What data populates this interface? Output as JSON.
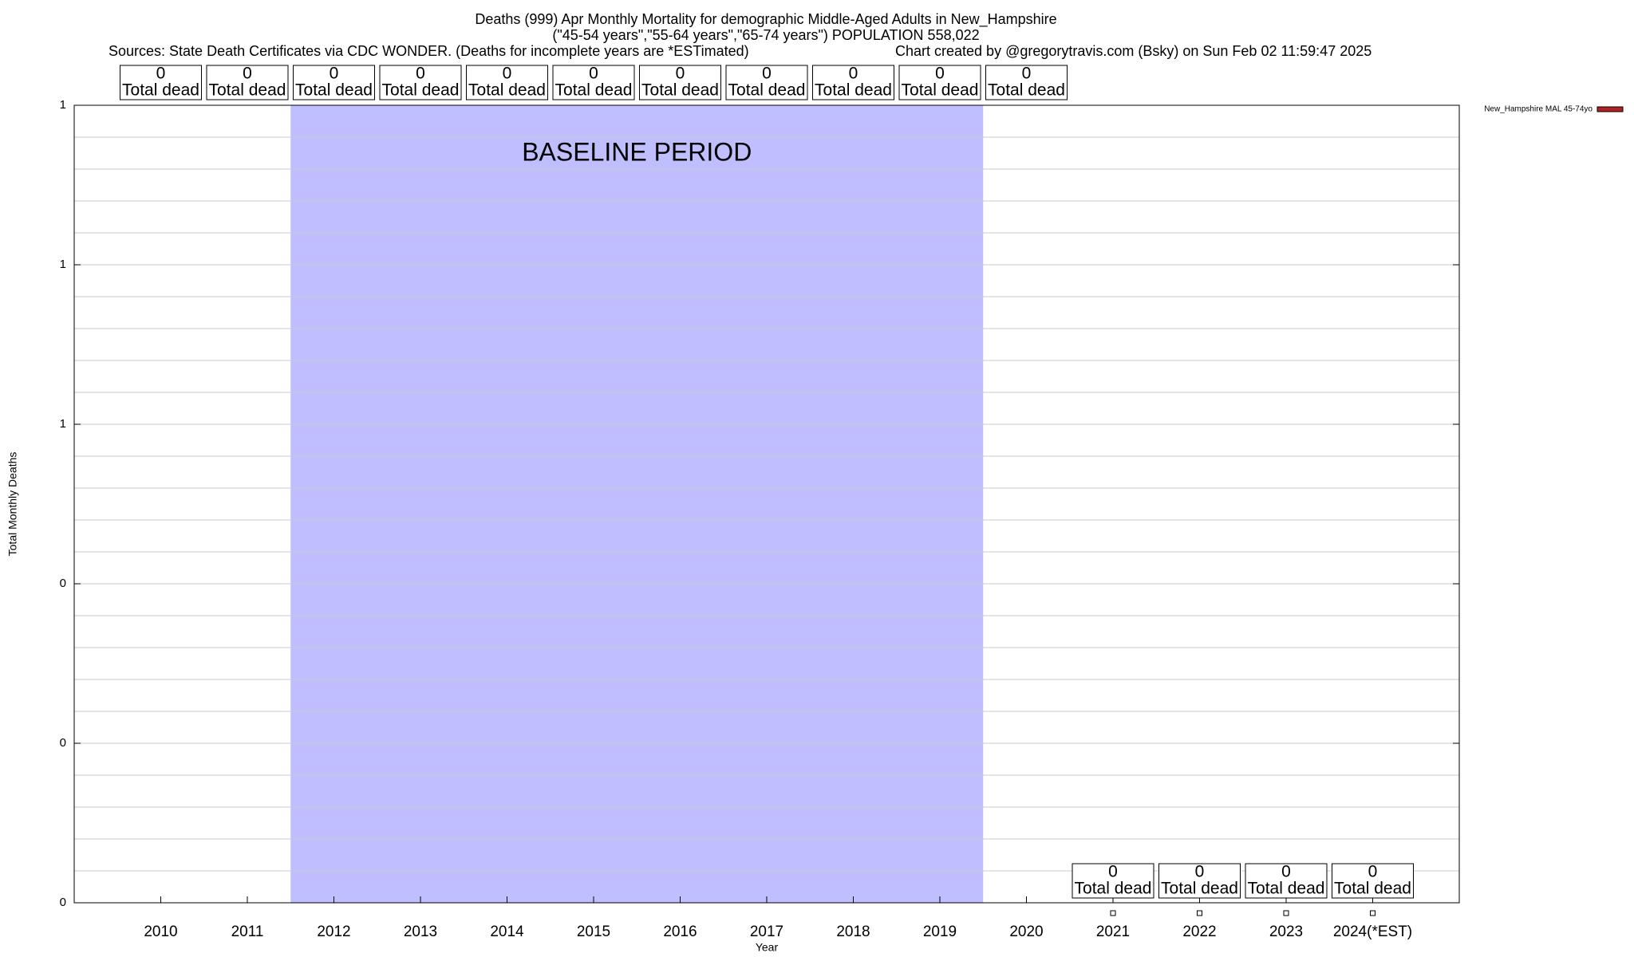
{
  "chart_data": {
    "type": "line",
    "title": "Deaths (999) Apr Monthly Mortality for demographic Middle-Aged Adults in New_Hampshire",
    "subtitle": "(\"45-54 years\",\"55-64 years\",\"65-74 years\") POPULATION 558,022",
    "source": "Sources: State Death Certificates via CDC WONDER. (Deaths for incomplete years are *ESTimated)",
    "credit": "Chart created by @gregorytravis.com (Bsky) on Sun Feb 02 11:59:47 2025",
    "x_label": "Year",
    "y_label": "Total Monthly Deaths",
    "categories": [
      "2010",
      "2011",
      "2012",
      "2013",
      "2014",
      "2015",
      "2016",
      "2017",
      "2018",
      "2019",
      "2020",
      "2021",
      "2022",
      "2023",
      "2024(*EST)"
    ],
    "series": [
      {
        "name": "New_Hampshire MAL 45-74yo",
        "color": "#b22222",
        "values": [
          null,
          null,
          null,
          null,
          null,
          null,
          null,
          null,
          null,
          null,
          null,
          0,
          0,
          0,
          0
        ],
        "value_labels": [
          "0",
          "0",
          "0",
          "0",
          "0",
          "0",
          "0",
          "0",
          "0",
          "0",
          "0",
          "0",
          "0",
          "0",
          "0"
        ]
      }
    ],
    "annotation_text": "Total dead",
    "baseline": {
      "label": "BASELINE PERIOD",
      "from": "2012",
      "to": "2019",
      "color": "#bfbfff"
    },
    "ylim": [
      0,
      1
    ],
    "yticks": [
      {
        "value": 0,
        "label": "0"
      },
      {
        "value": 0.2,
        "label": "0"
      },
      {
        "value": 0.4,
        "label": "0"
      },
      {
        "value": 0.6,
        "label": "1"
      },
      {
        "value": 0.8,
        "label": "1"
      },
      {
        "value": 1,
        "label": "1"
      }
    ],
    "yticks_minor": [
      0.04,
      0.08,
      0.12,
      0.16,
      0.24,
      0.28,
      0.32,
      0.36,
      0.44,
      0.48,
      0.52,
      0.56,
      0.64,
      0.68,
      0.72,
      0.76,
      0.84,
      0.88,
      0.92,
      0.96
    ],
    "grid": true,
    "legend": "top-right-outside"
  }
}
